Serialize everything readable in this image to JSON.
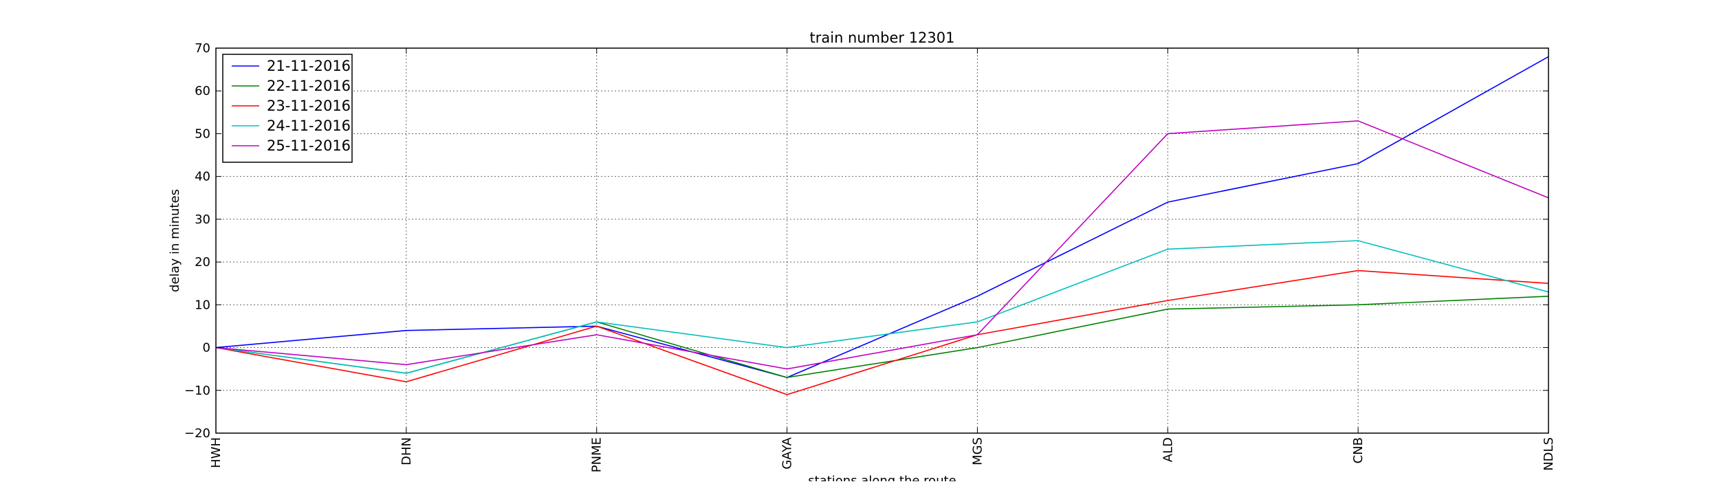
{
  "chart_data": {
    "type": "line",
    "title": "train number 12301",
    "xlabel": "stations along the route",
    "ylabel": "delay in minutes",
    "categories": [
      "HWH",
      "DHN",
      "PNME",
      "GAYA",
      "MGS",
      "ALD",
      "CNB",
      "NDLS"
    ],
    "ylim": [
      -20,
      70
    ],
    "yticks": [
      -20,
      -10,
      0,
      10,
      20,
      30,
      40,
      50,
      60,
      70
    ],
    "grid": true,
    "legend_position": "top-left",
    "series": [
      {
        "name": "21-11-2016",
        "color": "#0000ff",
        "values": [
          0,
          4,
          5,
          -7,
          12,
          34,
          43,
          68
        ]
      },
      {
        "name": "22-11-2016",
        "color": "#008000",
        "values": [
          0,
          -6,
          6,
          -7,
          0,
          9,
          10,
          12
        ]
      },
      {
        "name": "23-11-2016",
        "color": "#ff0000",
        "values": [
          0,
          -8,
          5,
          -11,
          3,
          11,
          18,
          15
        ]
      },
      {
        "name": "24-11-2016",
        "color": "#00bfbf",
        "values": [
          0,
          -6,
          6,
          0,
          6,
          23,
          25,
          13
        ]
      },
      {
        "name": "25-11-2016",
        "color": "#bf00bf",
        "values": [
          0,
          -4,
          3,
          -5,
          3,
          50,
          53,
          35
        ]
      }
    ]
  }
}
